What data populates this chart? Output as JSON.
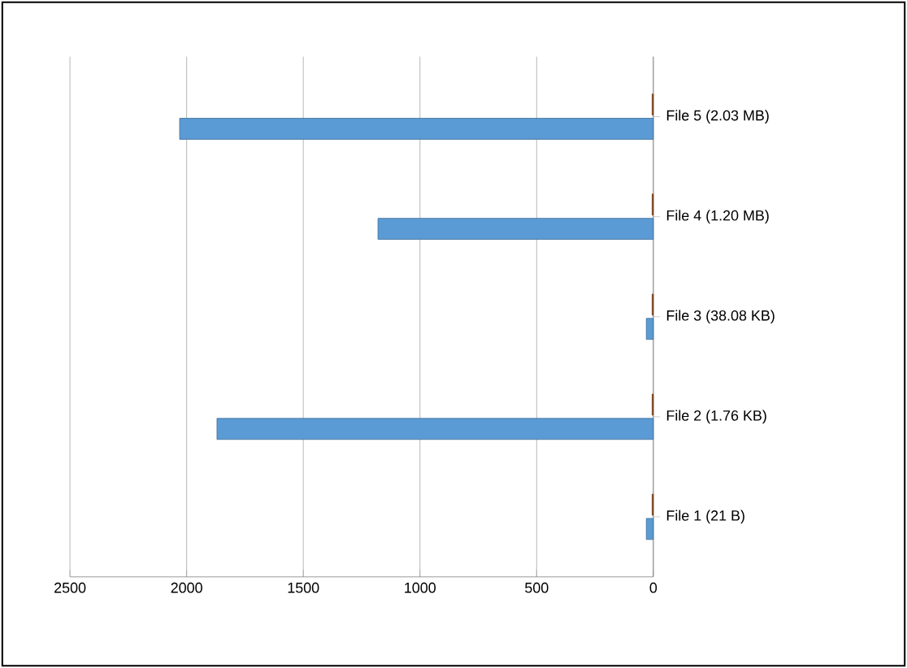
{
  "chart_data": {
    "type": "bar",
    "orientation": "horizontal",
    "categories": [
      "File 5 (2.03 MB)",
      "File 4 (1.20 MB)",
      "File 3 (38.08 KB)",
      "File 2 (1.76 KB)",
      "File 1 (21 B)"
    ],
    "series": [
      {
        "color": "#5b9bd5",
        "values": [
          2030,
          1180,
          30,
          1870,
          30
        ]
      },
      {
        "color": "#9c4f1d",
        "values": [
          5,
          5,
          5,
          5,
          5
        ]
      }
    ],
    "xlim": [
      2500,
      0
    ],
    "xticks": [
      2500,
      2000,
      1500,
      1000,
      500,
      0
    ],
    "grid": "x"
  }
}
